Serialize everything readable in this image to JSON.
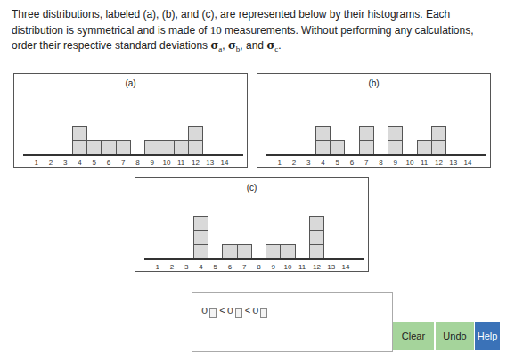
{
  "question": {
    "lines": [
      [
        {
          "text": "Three distributions, labeled (a), (b), and (c), are represented below by their histograms. Each"
        }
      ],
      [
        {
          "text": "distribution is symmetrical and is made of "
        },
        {
          "number": 10
        },
        {
          "text": " measurements. Without performing any calculations,"
        }
      ],
      [
        {
          "text": "order their respective standard deviations "
        },
        {
          "symbol": "σ",
          "sub": "a"
        },
        {
          "text": ", "
        },
        {
          "symbol": "σ",
          "sub": "b"
        },
        {
          "text": ", and "
        },
        {
          "symbol": "σ",
          "sub": "c"
        },
        {
          "text": "."
        }
      ]
    ]
  },
  "chart_data": [
    {
      "type": "bar",
      "title": "(a)",
      "x": [
        4,
        5,
        6,
        7,
        9,
        10,
        11,
        12
      ],
      "values": [
        2,
        1,
        1,
        1,
        1,
        1,
        1,
        2
      ],
      "xlim": [
        0.1,
        15.3
      ],
      "xticks": [
        1,
        2,
        3,
        4,
        5,
        6,
        7,
        8,
        9,
        10,
        11,
        12,
        13,
        14
      ],
      "ylim": [
        0,
        4.75
      ],
      "tick_labels": "x",
      "color": "#d9d9d9"
    },
    {
      "type": "bar",
      "title": "(b)",
      "x": [
        4,
        5,
        7,
        9,
        11,
        12
      ],
      "values": [
        2,
        1,
        2,
        2,
        1,
        2
      ],
      "xlim": [
        0.1,
        15.3
      ],
      "xticks": [
        1,
        2,
        3,
        4,
        5,
        6,
        7,
        8,
        9,
        10,
        11,
        12,
        13,
        14
      ],
      "ylim": [
        0,
        4.75
      ],
      "tick_labels": "x",
      "color": "#d9d9d9"
    },
    {
      "type": "bar",
      "title": "(c)",
      "x": [
        4,
        6,
        7,
        9,
        10,
        12
      ],
      "values": [
        3,
        1,
        1,
        1,
        1,
        3
      ],
      "xlim": [
        0.1,
        15.3
      ],
      "xticks": [
        1,
        2,
        3,
        4,
        5,
        6,
        7,
        8,
        9,
        10,
        11,
        12,
        13,
        14
      ],
      "ylim": [
        0,
        4.75
      ],
      "tick_labels": "x",
      "color": "#d9d9d9"
    }
  ],
  "answer": {
    "symbol": "σ",
    "relation": "<",
    "slots": 3
  },
  "buttons": [
    "Clear",
    "Undo",
    "Help"
  ]
}
